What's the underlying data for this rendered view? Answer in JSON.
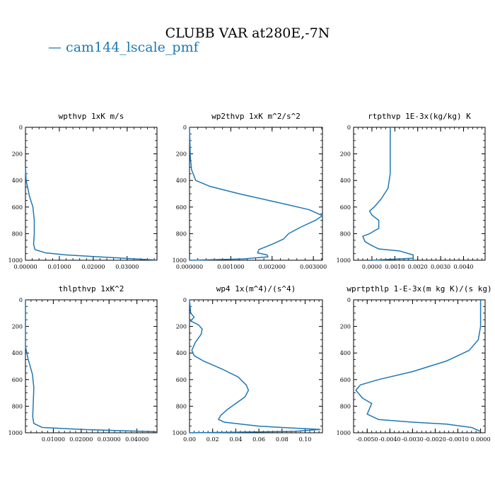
{
  "title": "CLUBB VAR at280E,-7N",
  "legend": {
    "line": "—",
    "label": "cam144_lscale_pmf",
    "color": "#1f77b4"
  },
  "chart_data": [
    {
      "type": "line",
      "title": "wpthvp  1xK m/s",
      "xlim": [
        0,
        0.0388
      ],
      "ylim": [
        1000,
        0
      ],
      "xticks": [
        0.0,
        0.01,
        0.02,
        0.03
      ],
      "xticklabels": [
        "0.00000",
        "0.01000",
        "0.02000",
        "0.03000"
      ],
      "yticks": [
        0,
        200,
        400,
        600,
        800,
        1000
      ],
      "series": [
        {
          "color": "#1f77b4",
          "points": [
            [
              0.0,
              300
            ],
            [
              0.0002,
              400
            ],
            [
              0.0012,
              520
            ],
            [
              0.0022,
              600
            ],
            [
              0.0026,
              700
            ],
            [
              0.0026,
              800
            ],
            [
              0.0024,
              880
            ],
            [
              0.0028,
              920
            ],
            [
              0.006,
              945
            ],
            [
              0.012,
              960
            ],
            [
              0.022,
              975
            ],
            [
              0.031,
              988
            ],
            [
              0.0385,
              998
            ]
          ]
        }
      ]
    },
    {
      "type": "line",
      "title": "wp2thvp  1xK m^2/s^2",
      "xlim": [
        0,
        0.00322
      ],
      "ylim": [
        1000,
        0
      ],
      "xticks": [
        0.0,
        0.001,
        0.002,
        0.003
      ],
      "xticklabels": [
        "0.000000",
        "0.001000",
        "0.002000",
        "0.003000"
      ],
      "yticks": [
        0,
        200,
        400,
        600,
        800,
        1000
      ],
      "series": [
        {
          "color": "#1f77b4",
          "points": [
            [
              0.0,
              0
            ],
            [
              2e-05,
              230
            ],
            [
              5e-05,
              320
            ],
            [
              0.00015,
              400
            ],
            [
              0.0005,
              445
            ],
            [
              0.0012,
              500
            ],
            [
              0.0022,
              570
            ],
            [
              0.0029,
              620
            ],
            [
              0.00322,
              665
            ],
            [
              0.00305,
              700
            ],
            [
              0.0027,
              750
            ],
            [
              0.0024,
              800
            ],
            [
              0.00228,
              840
            ],
            [
              0.002,
              880
            ],
            [
              0.00168,
              920
            ],
            [
              0.00165,
              945
            ],
            [
              0.00188,
              960
            ],
            [
              0.0019,
              975
            ],
            [
              0.0013,
              990
            ],
            [
              0.0,
              1000
            ]
          ]
        }
      ]
    },
    {
      "type": "line",
      "title": "rtpthvp  1E-3x(kg/kg) K",
      "xlim": [
        -0.0008,
        0.00494
      ],
      "ylim": [
        1000,
        0
      ],
      "xticks": [
        0.0,
        0.001,
        0.002,
        0.003,
        0.004
      ],
      "xticklabels": [
        "0.0000",
        "0.0010",
        "0.0020",
        "0.0030",
        "0.0040"
      ],
      "yticks": [
        0,
        200,
        400,
        600,
        800,
        1000
      ],
      "series": [
        {
          "color": "#1f77b4",
          "points": [
            [
              0.0008,
              0
            ],
            [
              0.0008,
              150
            ],
            [
              0.0008,
              350
            ],
            [
              0.0007,
              460
            ],
            [
              0.0004,
              540
            ],
            [
              0.0001,
              600
            ],
            [
              -0.0001,
              630
            ],
            [
              0.0,
              660
            ],
            [
              0.0003,
              700
            ],
            [
              0.0003,
              760
            ],
            [
              -0.0001,
              800
            ],
            [
              -0.0004,
              820
            ],
            [
              -0.0003,
              860
            ],
            [
              0.0,
              890
            ],
            [
              0.0003,
              915
            ],
            [
              0.0012,
              930
            ],
            [
              0.0018,
              960
            ],
            [
              0.0018,
              985
            ],
            [
              0.0,
              1000
            ]
          ]
        }
      ]
    },
    {
      "type": "line",
      "title": "thlpthvp  1xK^2",
      "xlim": [
        0,
        0.0472
      ],
      "ylim": [
        1000,
        0
      ],
      "xticks": [
        0.01,
        0.02,
        0.03,
        0.04
      ],
      "xticklabels": [
        "0.01000",
        "0.02000",
        "0.03000",
        "0.04000"
      ],
      "yticks": [
        0,
        200,
        400,
        600,
        800,
        1000
      ],
      "series": [
        {
          "color": "#1f77b4",
          "points": [
            [
              0.0,
              0
            ],
            [
              0.0,
              350
            ],
            [
              0.001,
              450
            ],
            [
              0.0025,
              560
            ],
            [
              0.003,
              660
            ],
            [
              0.0028,
              780
            ],
            [
              0.0026,
              880
            ],
            [
              0.003,
              930
            ],
            [
              0.006,
              960
            ],
            [
              0.02,
              975
            ],
            [
              0.035,
              985
            ],
            [
              0.047,
              992
            ]
          ]
        }
      ]
    },
    {
      "type": "line",
      "title": "wp4  1x(m^4)/(s^4)",
      "xlim": [
        0,
        0.115
      ],
      "ylim": [
        1000,
        0
      ],
      "xticks": [
        0.0,
        0.02,
        0.04,
        0.06,
        0.08,
        0.1
      ],
      "xticklabels": [
        "0.00",
        "0.02",
        "0.04",
        "0.06",
        "0.08",
        "0.10"
      ],
      "yticks": [
        0,
        200,
        400,
        600,
        800,
        1000
      ],
      "series": [
        {
          "color": "#1f77b4",
          "points": [
            [
              0.0,
              0
            ],
            [
              0.001,
              100
            ],
            [
              0.004,
              130
            ],
            [
              0.001,
              160
            ],
            [
              0.006,
              180
            ],
            [
              0.008,
              190
            ],
            [
              0.011,
              220
            ],
            [
              0.01,
              260
            ],
            [
              0.005,
              320
            ],
            [
              0.002,
              380
            ],
            [
              0.004,
              420
            ],
            [
              0.012,
              460
            ],
            [
              0.028,
              520
            ],
            [
              0.042,
              580
            ],
            [
              0.049,
              640
            ],
            [
              0.051,
              680
            ],
            [
              0.048,
              730
            ],
            [
              0.04,
              780
            ],
            [
              0.032,
              830
            ],
            [
              0.027,
              870
            ],
            [
              0.025,
              900
            ],
            [
              0.03,
              920
            ],
            [
              0.06,
              950
            ],
            [
              0.09,
              965
            ],
            [
              0.113,
              975
            ],
            [
              0.09,
              990
            ],
            [
              0.0,
              1000
            ]
          ]
        }
      ]
    },
    {
      "type": "line",
      "title": "wprtpthlp  1-E-3x(m kg K)/(s kg)",
      "xlim": [
        -0.0056,
        0.0002
      ],
      "ylim": [
        1000,
        0
      ],
      "xticks": [
        -0.005,
        -0.004,
        -0.003,
        -0.002,
        -0.001,
        0.0
      ],
      "xticklabels": [
        "-0.0050",
        "-0.0040",
        "-0.0030",
        "-0.0020",
        "-0.0010",
        "0.0000"
      ],
      "yticks": [
        0,
        200,
        400,
        600,
        800,
        1000
      ],
      "series": [
        {
          "color": "#1f77b4",
          "points": [
            [
              0.0,
              0
            ],
            [
              0.0,
              200
            ],
            [
              -0.0001,
              300
            ],
            [
              -0.0005,
              380
            ],
            [
              -0.0015,
              460
            ],
            [
              -0.003,
              540
            ],
            [
              -0.0045,
              600
            ],
            [
              -0.0053,
              640
            ],
            [
              -0.0055,
              680
            ],
            [
              -0.0052,
              740
            ],
            [
              -0.0048,
              780
            ],
            [
              -0.0049,
              820
            ],
            [
              -0.005,
              860
            ],
            [
              -0.0045,
              900
            ],
            [
              -0.003,
              920
            ],
            [
              -0.0015,
              935
            ],
            [
              -0.0004,
              960
            ],
            [
              0.0,
              990
            ]
          ]
        }
      ]
    }
  ]
}
